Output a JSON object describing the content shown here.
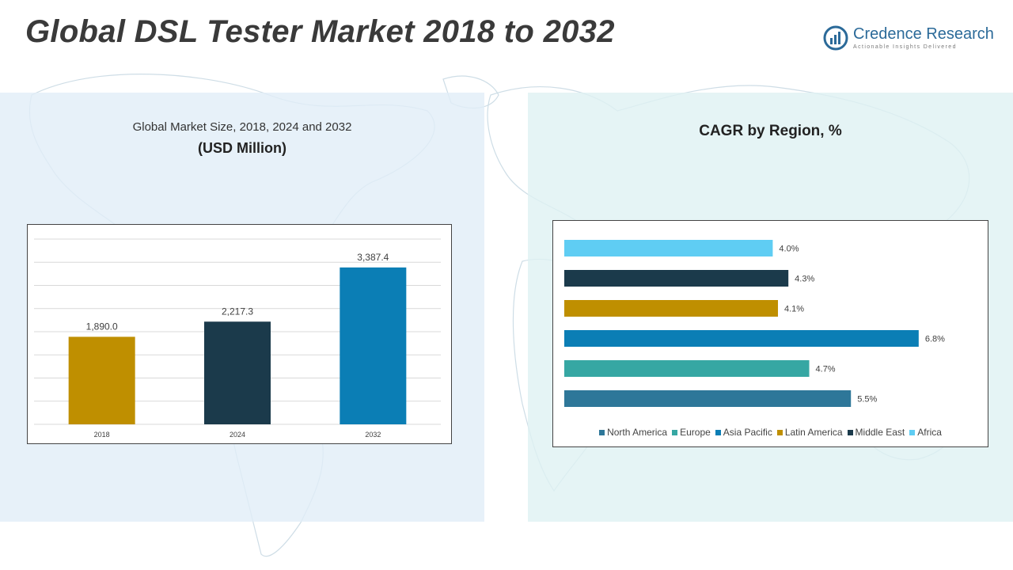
{
  "header": {
    "title": "Global DSL Tester Market 2018 to 2032",
    "logo_name": "Credence Research",
    "logo_tagline": "Actionable Insights Delivered"
  },
  "left_panel": {
    "subtitle": "Global Market Size, 2018, 2024 and 2032",
    "unit": "(USD Million)"
  },
  "right_panel": {
    "title": "CAGR by Region, %"
  },
  "chart_data": [
    {
      "type": "bar",
      "title": "Global Market Size, 2018, 2024 and 2032",
      "ylabel": "(USD Million)",
      "categories": [
        "2018",
        "2024",
        "2032"
      ],
      "values": [
        1890.0,
        2217.3,
        3387.4
      ],
      "value_labels": [
        "1,890.0",
        "2,217.3",
        "3,387.4"
      ],
      "colors": [
        "#bf8f00",
        "#1b3a4b",
        "#0b7eb5"
      ],
      "ylim": [
        0,
        4000
      ],
      "grid": true
    },
    {
      "type": "bar",
      "orientation": "horizontal",
      "title": "CAGR by Region, %",
      "categories": [
        "Africa",
        "Middle East",
        "Latin America",
        "Asia Pacific",
        "Europe",
        "North America"
      ],
      "values": [
        4.0,
        4.3,
        4.1,
        6.8,
        4.7,
        5.5
      ],
      "value_labels": [
        "4.0%",
        "4.3%",
        "4.1%",
        "6.8%",
        "4.7%",
        "5.5%"
      ],
      "colors": [
        "#5fcdf3",
        "#1b3a4b",
        "#bf8f00",
        "#0b7eb5",
        "#36a7a3",
        "#2e7799"
      ],
      "xlim": [
        0,
        7
      ],
      "grid": false,
      "legend": {
        "position": "bottom",
        "items": [
          {
            "label": "North America",
            "color": "#2e7799"
          },
          {
            "label": "Europe",
            "color": "#36a7a3"
          },
          {
            "label": "Asia Pacific",
            "color": "#0b7eb5"
          },
          {
            "label": "Latin America",
            "color": "#bf8f00"
          },
          {
            "label": "Middle East",
            "color": "#1b3a4b"
          },
          {
            "label": "Africa",
            "color": "#5fcdf3"
          }
        ]
      }
    }
  ]
}
